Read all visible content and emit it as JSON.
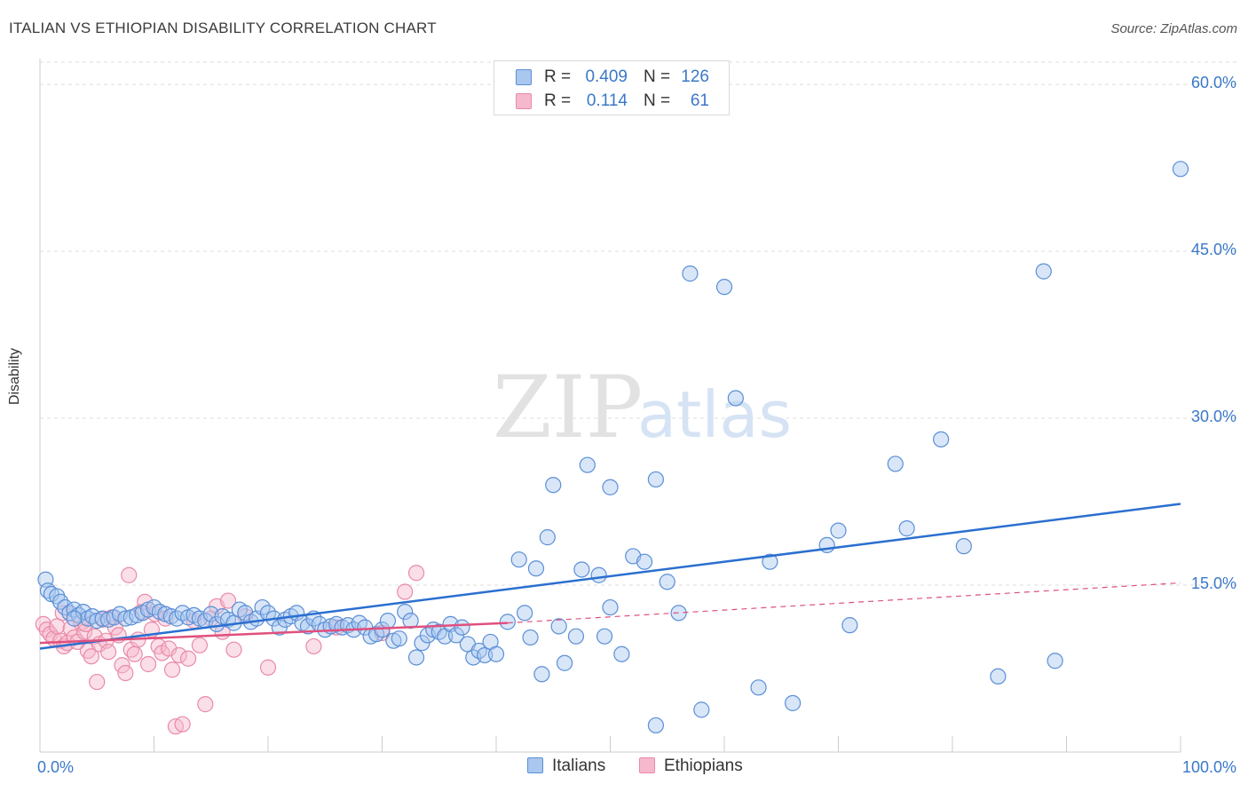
{
  "title": "ITALIAN VS ETHIOPIAN DISABILITY CORRELATION CHART",
  "source": "Source: ZipAtlas.com",
  "watermark": {
    "zip": "ZIP",
    "atlas": "atlas"
  },
  "legend": {
    "rows": [
      {
        "r_label": "R =",
        "r_value": "0.409",
        "n_label": "N =",
        "n_value": "126"
      },
      {
        "r_label": "R =",
        "r_value": "0.114",
        "n_label": "N =",
        "n_value": "61"
      }
    ]
  },
  "bottom_legend": {
    "italians": "Italians",
    "ethiopians": "Ethiopians"
  },
  "colors": {
    "italians_fill": "#a9c7ef",
    "italians_stroke": "#5b8fd6",
    "italians_line": "#2a6fd0",
    "ethiopians_fill": "#f6b8cc",
    "ethiopians_stroke": "#e98aa8",
    "ethiopians_line": "#e0507d",
    "tick_label": "#3a78c9",
    "grid": "#dddddd"
  },
  "chart_data": {
    "type": "scatter",
    "title": "ITALIAN VS ETHIOPIAN DISABILITY CORRELATION CHART",
    "xlabel": "",
    "ylabel": "Disability",
    "xlim": [
      0,
      100
    ],
    "ylim": [
      0,
      62
    ],
    "x_tick_labels": [
      "0.0%",
      "100.0%"
    ],
    "y_ticks": [
      15,
      30,
      45,
      60
    ],
    "y_tick_labels": [
      "15.0%",
      "30.0%",
      "45.0%",
      "60.0%"
    ],
    "grid": true,
    "legend_position": "top-center",
    "series": [
      {
        "name": "Italians",
        "R": 0.409,
        "N": 126,
        "trend": {
          "x": [
            0,
            100
          ],
          "y": [
            9.3,
            22.3
          ]
        },
        "points": [
          [
            0.5,
            15.5
          ],
          [
            0.7,
            14.5
          ],
          [
            1.0,
            14.2
          ],
          [
            1.5,
            14.0
          ],
          [
            1.8,
            13.5
          ],
          [
            2.2,
            13.0
          ],
          [
            2.6,
            12.5
          ],
          [
            3.0,
            12.8
          ],
          [
            3.4,
            12.3
          ],
          [
            3.8,
            12.6
          ],
          [
            4.2,
            12.0
          ],
          [
            4.6,
            12.2
          ],
          [
            5.0,
            11.8
          ],
          [
            5.5,
            12.0
          ],
          [
            6.0,
            11.9
          ],
          [
            6.5,
            12.1
          ],
          [
            7.0,
            12.4
          ],
          [
            7.5,
            12.0
          ],
          [
            8.0,
            12.1
          ],
          [
            8.5,
            12.3
          ],
          [
            9.0,
            12.5
          ],
          [
            9.5,
            12.8
          ],
          [
            10.0,
            13.0
          ],
          [
            10.5,
            12.6
          ],
          [
            11.0,
            12.4
          ],
          [
            11.5,
            12.2
          ],
          [
            12.0,
            12.0
          ],
          [
            12.5,
            12.5
          ],
          [
            13.0,
            12.1
          ],
          [
            13.5,
            12.3
          ],
          [
            14.0,
            12.0
          ],
          [
            14.5,
            11.8
          ],
          [
            15.0,
            12.4
          ],
          [
            15.5,
            11.5
          ],
          [
            16.0,
            12.2
          ],
          [
            16.5,
            11.9
          ],
          [
            17.0,
            11.6
          ],
          [
            17.5,
            12.8
          ],
          [
            18.0,
            12.5
          ],
          [
            18.5,
            11.7
          ],
          [
            19.0,
            12.0
          ],
          [
            19.5,
            13.0
          ],
          [
            20.0,
            12.5
          ],
          [
            20.5,
            12.0
          ],
          [
            21.0,
            11.2
          ],
          [
            21.5,
            11.9
          ],
          [
            22.0,
            12.2
          ],
          [
            22.5,
            12.5
          ],
          [
            23.0,
            11.6
          ],
          [
            23.5,
            11.3
          ],
          [
            24.0,
            12.0
          ],
          [
            24.5,
            11.5
          ],
          [
            25.0,
            11.0
          ],
          [
            25.5,
            11.3
          ],
          [
            26.0,
            11.5
          ],
          [
            26.5,
            11.2
          ],
          [
            27.0,
            11.4
          ],
          [
            27.5,
            11.0
          ],
          [
            28.0,
            11.6
          ],
          [
            28.5,
            11.2
          ],
          [
            29.0,
            10.4
          ],
          [
            29.5,
            10.6
          ],
          [
            30.0,
            11.0
          ],
          [
            30.5,
            11.8
          ],
          [
            31.0,
            10.0
          ],
          [
            31.5,
            10.2
          ],
          [
            32.0,
            12.6
          ],
          [
            32.5,
            11.8
          ],
          [
            33.0,
            8.5
          ],
          [
            33.5,
            9.8
          ],
          [
            34.0,
            10.5
          ],
          [
            34.5,
            11.0
          ],
          [
            35.0,
            10.8
          ],
          [
            35.5,
            10.4
          ],
          [
            36.0,
            11.5
          ],
          [
            36.5,
            10.5
          ],
          [
            37.0,
            11.2
          ],
          [
            37.5,
            9.7
          ],
          [
            38.0,
            8.5
          ],
          [
            38.5,
            9.1
          ],
          [
            39.0,
            8.7
          ],
          [
            39.5,
            9.9
          ],
          [
            40.0,
            8.8
          ],
          [
            41.0,
            11.7
          ],
          [
            42.0,
            17.3
          ],
          [
            42.5,
            12.5
          ],
          [
            43.0,
            10.3
          ],
          [
            43.5,
            16.5
          ],
          [
            44.0,
            7.0
          ],
          [
            44.5,
            19.3
          ],
          [
            45.0,
            24.0
          ],
          [
            45.5,
            11.3
          ],
          [
            46.0,
            8.0
          ],
          [
            47.0,
            10.4
          ],
          [
            47.5,
            16.4
          ],
          [
            48.0,
            25.8
          ],
          [
            49.0,
            15.9
          ],
          [
            49.5,
            10.4
          ],
          [
            50.0,
            23.8
          ],
          [
            51.0,
            8.8
          ],
          [
            52.0,
            17.6
          ],
          [
            53.0,
            17.1
          ],
          [
            54.0,
            24.5
          ],
          [
            55.0,
            15.3
          ],
          [
            56.0,
            12.5
          ],
          [
            57.0,
            43.0
          ],
          [
            58.0,
            3.8
          ],
          [
            60.0,
            41.8
          ],
          [
            61.0,
            31.8
          ],
          [
            63.0,
            5.8
          ],
          [
            64.0,
            17.1
          ],
          [
            66.0,
            4.4
          ],
          [
            69.0,
            18.6
          ],
          [
            70.0,
            19.9
          ],
          [
            71.0,
            11.4
          ],
          [
            75.0,
            25.9
          ],
          [
            76.0,
            20.1
          ],
          [
            79.0,
            28.1
          ],
          [
            81.0,
            18.5
          ],
          [
            84.0,
            6.8
          ],
          [
            88.0,
            43.2
          ],
          [
            89.0,
            8.2
          ],
          [
            100.0,
            52.4
          ],
          [
            54.0,
            2.4
          ],
          [
            50.0,
            13.0
          ],
          [
            3.0,
            12.0
          ]
        ]
      },
      {
        "name": "Ethiopians",
        "R": 0.114,
        "N": 61,
        "trend": {
          "x": [
            0,
            41
          ],
          "y": [
            9.8,
            11.6
          ]
        },
        "trend_extension": {
          "x": [
            41,
            100
          ],
          "y": [
            11.6,
            15.2
          ]
        },
        "points": [
          [
            0.3,
            11.5
          ],
          [
            0.6,
            11.0
          ],
          [
            0.9,
            10.6
          ],
          [
            1.2,
            10.2
          ],
          [
            1.5,
            11.3
          ],
          [
            1.8,
            10.0
          ],
          [
            2.1,
            9.5
          ],
          [
            2.4,
            9.8
          ],
          [
            2.7,
            11.1
          ],
          [
            3.0,
            10.3
          ],
          [
            3.3,
            9.9
          ],
          [
            3.6,
            11.6
          ],
          [
            3.9,
            10.8
          ],
          [
            4.2,
            9.1
          ],
          [
            4.5,
            8.6
          ],
          [
            4.8,
            10.4
          ],
          [
            5.0,
            6.3
          ],
          [
            5.2,
            9.7
          ],
          [
            5.5,
            11.9
          ],
          [
            5.8,
            10.0
          ],
          [
            6.0,
            9.0
          ],
          [
            6.3,
            12.1
          ],
          [
            6.6,
            11.2
          ],
          [
            6.9,
            10.5
          ],
          [
            7.2,
            7.8
          ],
          [
            7.5,
            7.1
          ],
          [
            7.8,
            15.9
          ],
          [
            8.0,
            9.2
          ],
          [
            8.3,
            8.8
          ],
          [
            8.6,
            10.1
          ],
          [
            8.9,
            12.6
          ],
          [
            9.2,
            13.5
          ],
          [
            9.5,
            7.9
          ],
          [
            9.8,
            11.0
          ],
          [
            10.1,
            12.4
          ],
          [
            10.4,
            9.5
          ],
          [
            10.7,
            8.9
          ],
          [
            11.0,
            12.0
          ],
          [
            11.3,
            9.3
          ],
          [
            11.6,
            7.4
          ],
          [
            11.9,
            2.3
          ],
          [
            12.2,
            8.7
          ],
          [
            12.5,
            2.5
          ],
          [
            13.0,
            8.4
          ],
          [
            13.5,
            11.8
          ],
          [
            14.0,
            9.6
          ],
          [
            14.5,
            4.3
          ],
          [
            15.0,
            12.0
          ],
          [
            15.5,
            13.1
          ],
          [
            16.0,
            10.8
          ],
          [
            16.5,
            13.6
          ],
          [
            17.0,
            9.2
          ],
          [
            18.0,
            12.2
          ],
          [
            20.0,
            7.6
          ],
          [
            24.0,
            9.5
          ],
          [
            26.0,
            11.2
          ],
          [
            30.0,
            10.7
          ],
          [
            32.0,
            14.4
          ],
          [
            33.0,
            16.1
          ],
          [
            2.0,
            12.5
          ],
          [
            4.0,
            11.5
          ]
        ]
      }
    ]
  }
}
